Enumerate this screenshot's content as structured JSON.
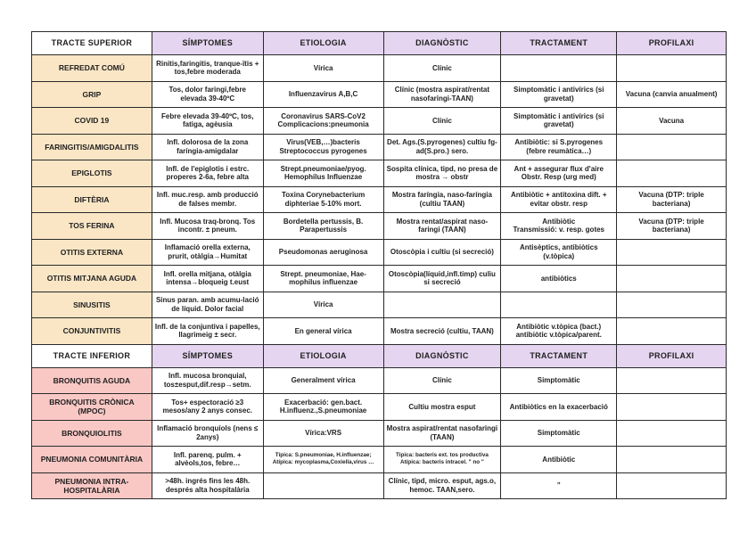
{
  "colors": {
    "header_fill": "#e5d5f0",
    "upper_label_fill": "#fae6c5",
    "lower_label_fill": "#f9c8c5",
    "corner_fill": "#ffffff",
    "border": "#2a2a2a",
    "text": "#1f1f1f"
  },
  "table": {
    "header_superior": [
      "TRACTE SUPERIOR",
      "SÍMPTOMES",
      "ETIOLOGIA",
      "DIAGNÒSTIC",
      "TRACTAMENT",
      "PROFILAXI"
    ],
    "header_inferior": [
      "TRACTE INFERIOR",
      "SÍMPTOMES",
      "ETIOLOGIA",
      "DIAGNÒSTIC",
      "TRACTAMENT",
      "PROFILAXI"
    ],
    "upper_rows": [
      {
        "label": "REFREDAT COMÚ",
        "simptomes": "Rinitis,faringitis, tranque-ïtis + tos,febre moderada",
        "etiologia": "Vírica",
        "diagnostic": "Clínic",
        "tractament": "",
        "profilaxi": ""
      },
      {
        "label": "GRIP",
        "simptomes": "Tos, dolor faringi,febre elevada 39-40ºC",
        "etiologia": "Influenzavirus A,B,C",
        "diagnostic": "Clínic (mostra aspirat/rentat nasofaringi-TAAN)",
        "tractament": "Simptomàtic i antivírics (si gravetat)",
        "profilaxi": "Vacuna (canvia anualment)"
      },
      {
        "label": "COVID 19",
        "simptomes": "Febre elevada 39-40ºC, tos, fatiga, agèusia",
        "etiologia": "Coronavirus SARS-CoV2\nComplicacions:pneumonia",
        "diagnostic": "Clínic",
        "tractament": "Simptomàtic i antivírics (si gravetat)",
        "profilaxi": "Vacuna"
      },
      {
        "label": "FARINGITIS/AMIGDALITIS",
        "simptomes": "Infl. dolorosa de la zona faríngia-amigdalar",
        "etiologia": "Virus(VEB,…)bacteris\nStreptococcus pyrogenes",
        "diagnostic": "Det. Ags.(S.pyrogenes) cultiu fg-ad(S.pro.) sero.",
        "tractament": "Antibiòtic: si S.pyrogenes (febre reumàtica…)",
        "profilaxi": ""
      },
      {
        "label": "EPIGLOTIS",
        "simptomes": "Infl. de l'epiglotis i estrc. properes 2-6a, febre alta",
        "etiologia": "Strept.pneumoniae/pyog.\nHemophilus Influenzae",
        "diagnostic": "Sospita clínica, tipd, no presa de mostra → obstr",
        "tractament": "Ant + assegurar flux d'aire Obstr. Resp (urg med)",
        "profilaxi": ""
      },
      {
        "label": "DIFTÈRIA",
        "simptomes": "Infl. muc.resp. amb producció de falses membr.",
        "etiologia": "Toxina Corynebacterium diphteriae 5-10% mort.",
        "diagnostic": "Mostra faríngia, naso-faríngia (cultiu TAAN)",
        "tractament": "Antibiòtic + antitoxina dift. + evitar obstr. resp",
        "profilaxi": "Vacuna (DTP: triple bacteriana)"
      },
      {
        "label": "TOS FERINA",
        "simptomes": "Infl. Mucosa traq-bronq. Tos incontr. ± pneum.",
        "etiologia": "Bordetella pertussis, B. Parapertussis",
        "diagnostic": "Mostra rentat/aspirat naso-faringi (TAAN)",
        "tractament": "Antibiòtic\nTransmissió: v. resp. gotes",
        "profilaxi": "Vacuna (DTP: triple bacteriana)"
      },
      {
        "label": "OTITIS EXTERNA",
        "simptomes": "Inflamació orella externa, prurit, otàlgia→Humitat",
        "etiologia": "Pseudomonas aeruginosa",
        "diagnostic": "Otoscòpia i cultiu (si secreció)",
        "tractament": "Antisèptics, antibiòtics (v.tòpica)",
        "profilaxi": ""
      },
      {
        "label": "OTITIS MITJANA AGUDA",
        "simptomes": "Infl. orella mitjana, otàlgia intensa→bloqueig t.eust",
        "etiologia": "Strept. pneumoniae, Hae-mophilus influenzae",
        "diagnostic": "Otoscòpia(líquid,infl.timp) culiu si secreció",
        "tractament": "antibiòtics",
        "profilaxi": ""
      },
      {
        "label": "SINUSITIS",
        "simptomes": "Sinus paran. amb acumu-lació de líquid. Dolor facial",
        "etiologia": "Vírica",
        "diagnostic": "",
        "tractament": "",
        "profilaxi": ""
      },
      {
        "label": "CONJUNTIVITIS",
        "simptomes": "Infl. de la conjuntiva i papelles, llagrimeig ± secr.",
        "etiologia": "En general vírica",
        "diagnostic": "Mostra secreció (cultiu, TAAN)",
        "tractament": "Antibiòtic v.tòpica (bact.) antibiòtic v.tòpica/parent.",
        "profilaxi": ""
      }
    ],
    "lower_rows": [
      {
        "label": "BRONQUITIS AGUDA",
        "simptomes": "Infl. mucosa bronquial, tos±esput,dif.resp→setm.",
        "etiologia": "Generalment vírica",
        "diagnostic": "Clínic",
        "tractament": "Simptomàtic",
        "profilaxi": ""
      },
      {
        "label": "BRONQUITIS CRÒNICA (MPOC)",
        "simptomes": "Tos+ espectoració ≥3 mesos/any 2 anys consec.",
        "etiologia": "Exacerbació: gen.bact. H.influenz.,S.pneumoniae",
        "diagnostic": "Cultiu mostra esput",
        "tractament": "Antibiòtics en la exacerbació",
        "profilaxi": ""
      },
      {
        "label": "BRONQUIOLITIS",
        "simptomes": "Inflamació bronquíols (nens ≤ 2anys)",
        "etiologia": "Vírica:VRS",
        "diagnostic": "Mostra aspirat/rentat nasofaringi (TAAN)",
        "tractament": "Simptomàtic",
        "profilaxi": ""
      },
      {
        "label": "PNEUMONIA COMUNITÀRIA",
        "simptomes": "Infl. parenq. pulm. + alvèols,tos, febre…",
        "etiologia": "Típica: S.pneumoniae, H.influenzae;\nAtípica: mycoplasma,Coxiella,virus …",
        "diagnostic": "Típica: bacteris ext. tos productiva\nAtípica: bacteris intracel. \" no \"",
        "tractament": "Antibiòtic",
        "profilaxi": "",
        "small_fields": [
          "etiologia",
          "diagnostic"
        ]
      },
      {
        "label": "PNEUMONIA INTRA-HOSPITALÀRIA",
        "simptomes": ">48h. ingrés fins les 48h. després alta hospitalària",
        "etiologia": "",
        "diagnostic": "Clínic, tipd, micro. esput, ags.o, hemoc. TAAN,sero.",
        "tractament": "”",
        "profilaxi": ""
      }
    ]
  }
}
